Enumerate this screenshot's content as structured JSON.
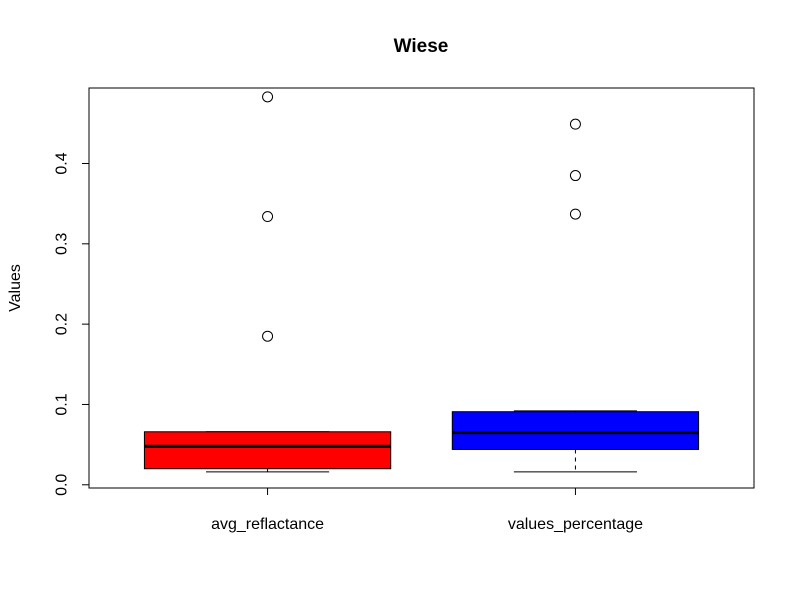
{
  "chart_data": {
    "type": "boxplot",
    "title": "Wiese",
    "xlabel": "",
    "ylabel": "Values",
    "ylim": [
      -0.004,
      0.494
    ],
    "yticks": [
      0.0,
      0.1,
      0.2,
      0.3,
      0.4
    ],
    "ytick_labels": [
      "0.0",
      "0.1",
      "0.2",
      "0.3",
      "0.4"
    ],
    "categories": [
      "avg_reflactance",
      "values_percentage"
    ],
    "boxes": [
      {
        "name": "avg_reflactance",
        "color": "#ff0000",
        "whisker_low": 0.016,
        "q1": 0.02,
        "median": 0.048,
        "q3": 0.066,
        "whisker_high": 0.066,
        "outliers": [
          0.483,
          0.334,
          0.185
        ]
      },
      {
        "name": "values_percentage",
        "color": "#0000ff",
        "whisker_low": 0.016,
        "q1": 0.044,
        "median": 0.065,
        "q3": 0.091,
        "whisker_high": 0.092,
        "outliers": [
          0.449,
          0.385,
          0.337
        ]
      }
    ]
  }
}
